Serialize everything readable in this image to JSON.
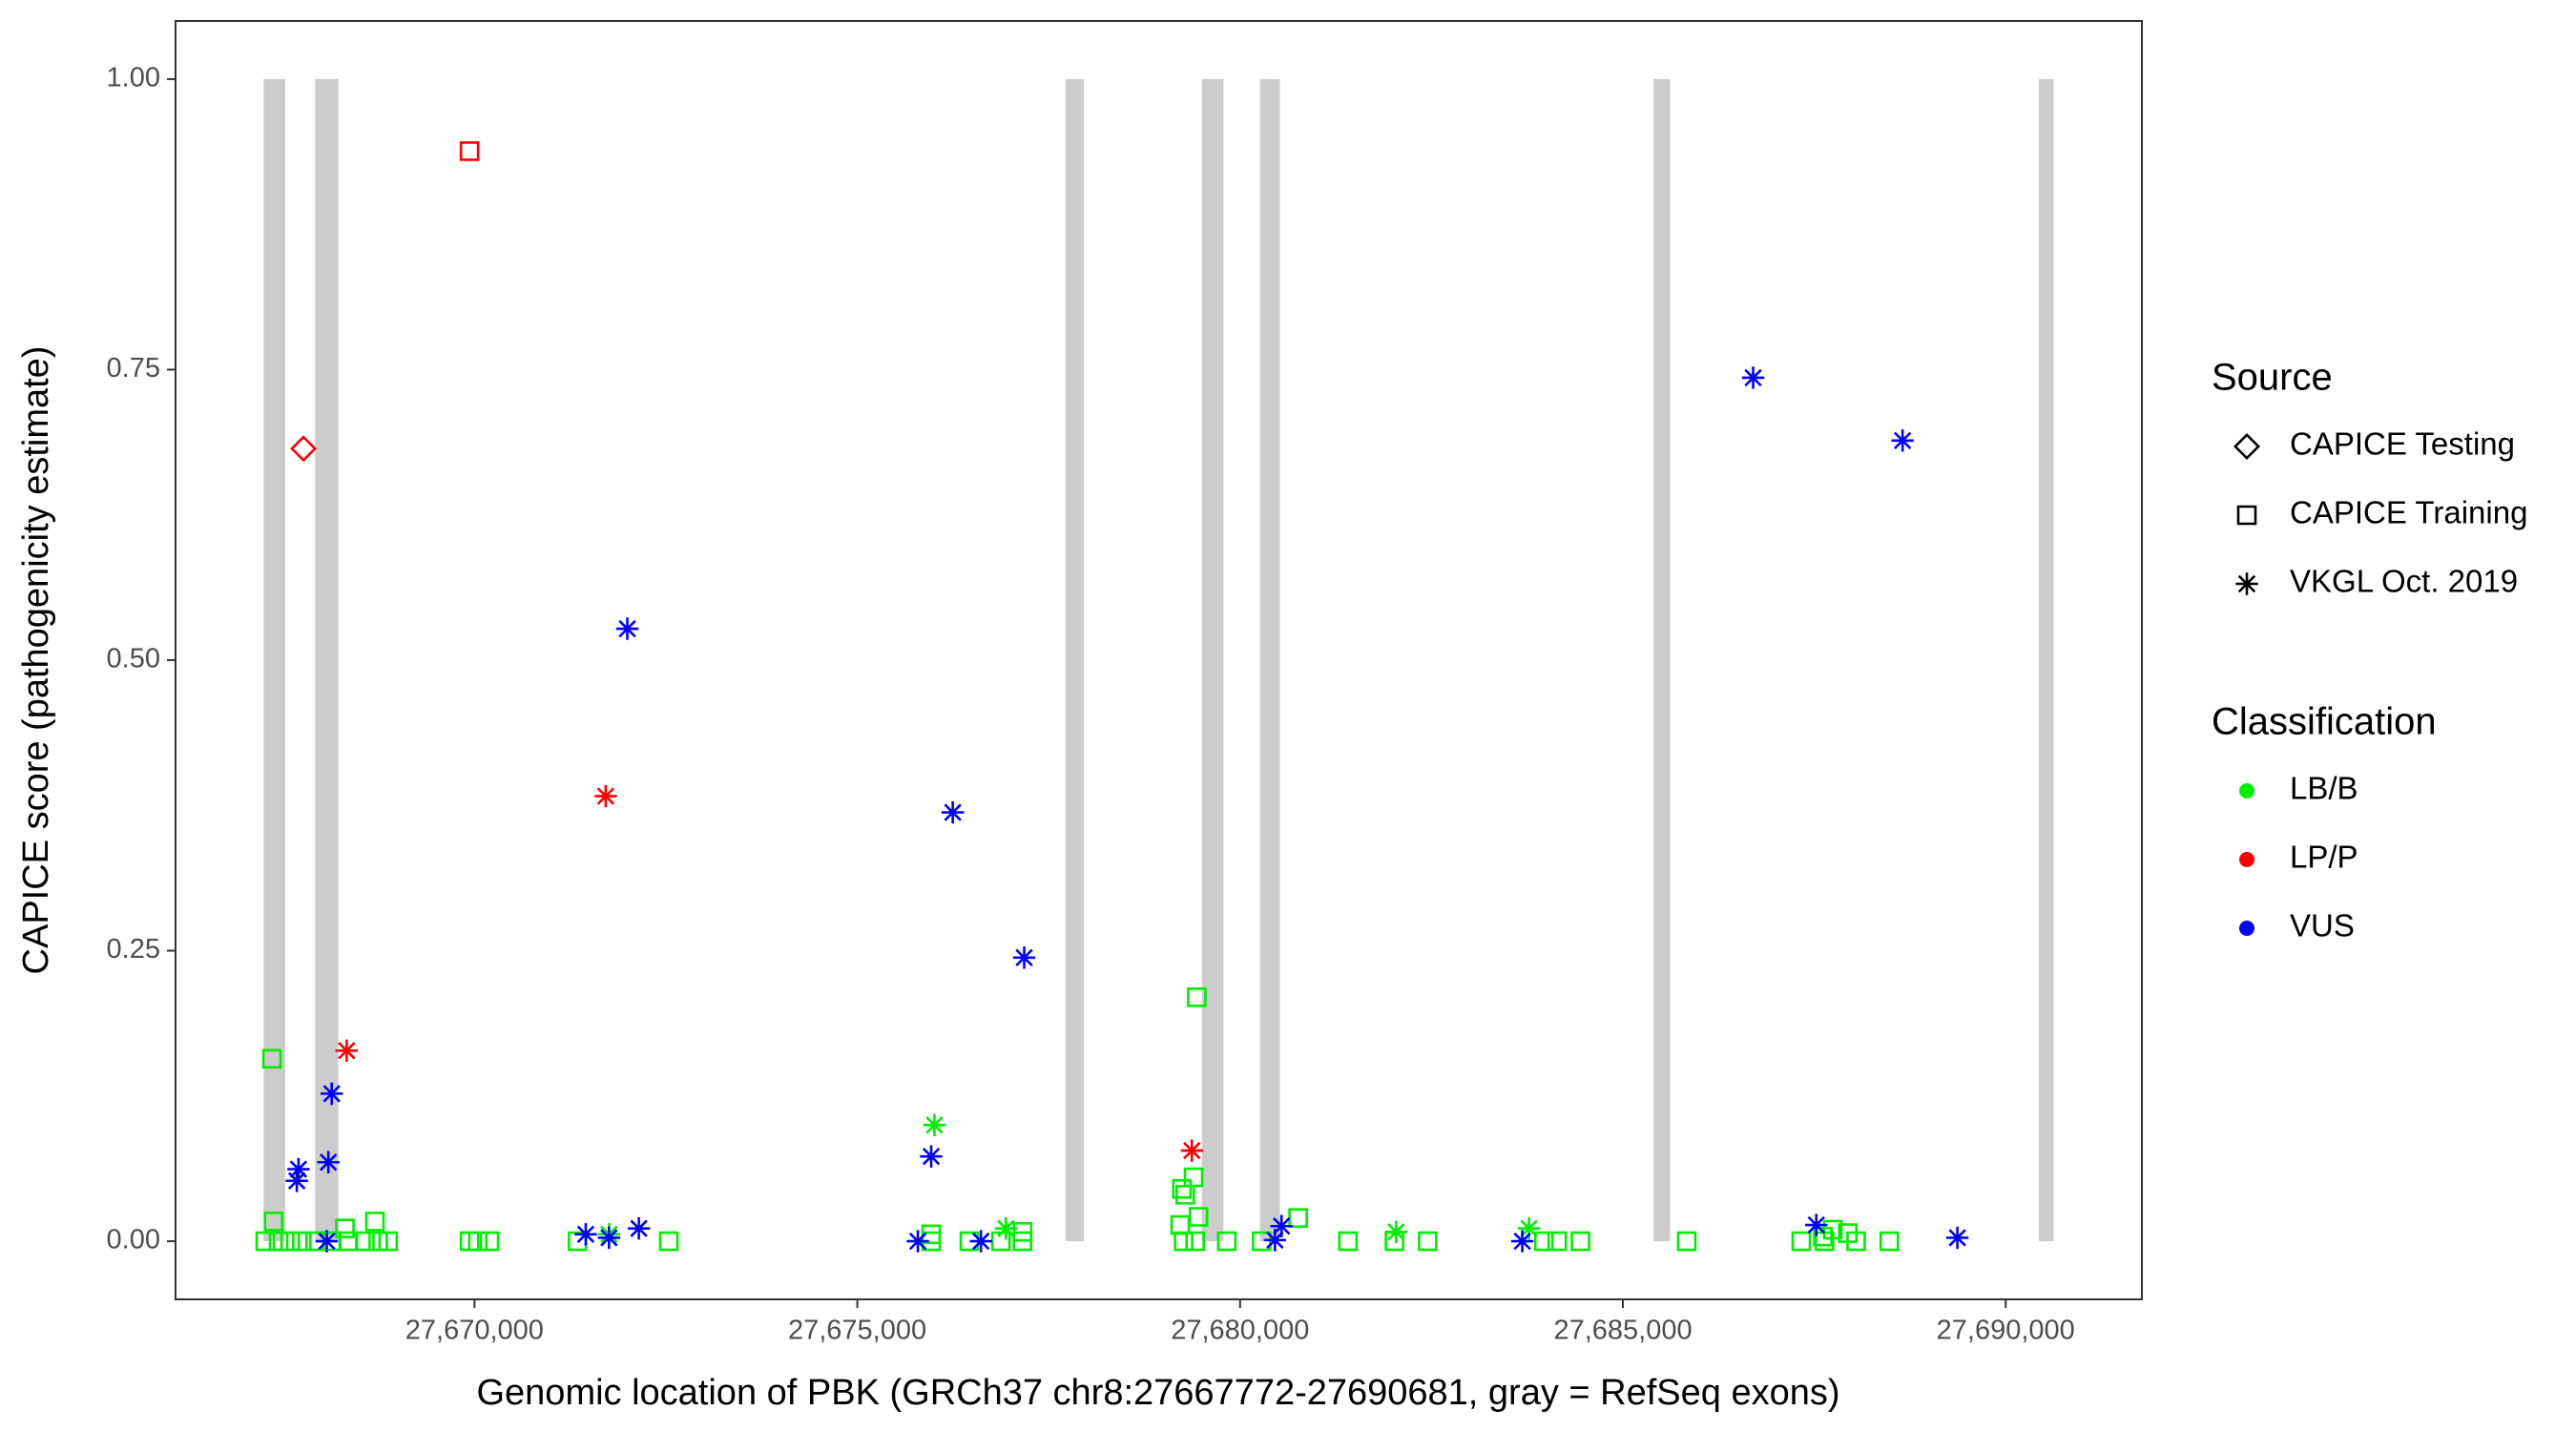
{
  "chart_data": {
    "type": "scatter",
    "x_label": "Genomic location of PBK (GRCh37 chr8:27667772-27690681, gray = RefSeq exons)",
    "y_label": "CAPICE score (pathogenicity estimate)",
    "xlim": [
      27666095,
      27691779
    ],
    "ylim": [
      -0.05,
      1.05
    ],
    "xticks": [
      {
        "value": 27670000,
        "label": "27,670,000"
      },
      {
        "value": 27675000,
        "label": "27,675,000"
      },
      {
        "value": 27680000,
        "label": "27,680,000"
      },
      {
        "value": 27685000,
        "label": "27,685,000"
      },
      {
        "value": 27690000,
        "label": "27,690,000"
      }
    ],
    "yticks": [
      {
        "value": 0,
        "label": "0.00"
      },
      {
        "value": 0.25,
        "label": "0.25"
      },
      {
        "value": 0.5,
        "label": "0.50"
      },
      {
        "value": 0.75,
        "label": "0.75"
      },
      {
        "value": 1,
        "label": "1.00"
      }
    ],
    "grid": false,
    "exons": {
      "color": "#cccccc",
      "ymin": 0,
      "ymax": 1,
      "x": [
        [
          27667245,
          27667527
        ],
        [
          27667918,
          27668221
        ],
        [
          27677722,
          27677960
        ],
        [
          27679500,
          27679782
        ],
        [
          27680259,
          27680520
        ],
        [
          27685400,
          27685617
        ],
        [
          27690432,
          27690627
        ]
      ]
    },
    "legend": {
      "position": "right",
      "groups": [
        {
          "title": "Source",
          "items": [
            {
              "name": "CAPICE Testing",
              "shape": "diamond"
            },
            {
              "name": "CAPICE Training",
              "shape": "square"
            },
            {
              "name": "VKGL Oct. 2019",
              "shape": "asterisk"
            }
          ]
        },
        {
          "title": "Classification",
          "items": [
            {
              "name": "LB/B",
              "color": "#00ee00"
            },
            {
              "name": "LP/P",
              "color": "#ff0000"
            },
            {
              "name": "VUS",
              "color": "#0000ff"
            }
          ]
        }
      ]
    },
    "series": [
      {
        "source": "CAPICE Training",
        "classification": "LB/B",
        "x": [
          27667267,
          27667441,
          27667592,
          27667744,
          27667918,
          27668135,
          27668352,
          27668568,
          27668742,
          27668872,
          27668699,
          27668308,
          27667354,
          27667376,
          27669935,
          27670043,
          27670195,
          27671345,
          27672538,
          27675965,
          27676464,
          27676876,
          27677158,
          27677158,
          27675965,
          27679262,
          27679413,
          27679826,
          27679435,
          27679240,
          27679283,
          27679392,
          27679457,
          27679218,
          27680281,
          27680758,
          27681409,
          27682016,
          27682450,
          27683968,
          27684142,
          27684446,
          27685834,
          27687330,
          27687634,
          27688046,
          27688480,
          27687742,
          27687938,
          27687612
        ],
        "y": [
          0,
          0,
          0,
          0,
          0,
          0,
          0,
          0,
          0,
          0,
          0.017,
          0.011,
          0.157,
          0.017,
          0,
          0,
          0,
          0,
          0,
          0.006,
          0,
          0,
          0,
          0.008,
          0,
          0,
          0,
          0,
          0.21,
          0.045,
          0.04,
          0.055,
          0.021,
          0.014,
          0,
          0.02,
          0,
          0,
          0,
          0,
          0,
          0,
          0,
          0,
          0,
          0,
          0,
          0.01,
          0.007,
          0.004
        ]
      },
      {
        "source": "VKGL Oct. 2019",
        "classification": "LB/B",
        "x": [
          27676008,
          27676941,
          27682038,
          27683773,
          27671757
        ],
        "y": [
          0.1,
          0.011,
          0.008,
          0.011,
          0.006
        ]
      },
      {
        "source": "VKGL Oct. 2019",
        "classification": "VUS",
        "x": [
          27667701,
          27667679,
          27668091,
          27668135,
          27668070,
          27671453,
          27671757,
          27672147,
          27671996,
          27676247,
          27677180,
          27675965,
          27675791,
          27676615,
          27680455,
          27680541,
          27683686,
          27686701,
          27688653,
          27687526,
          27689369
        ],
        "y": [
          0.062,
          0.052,
          0.068,
          0.127,
          0,
          0.006,
          0.003,
          0.011,
          0.527,
          0.369,
          0.244,
          0.073,
          0,
          0,
          0.001,
          0.013,
          0,
          0.743,
          0.689,
          0.014,
          0.003
        ]
      },
      {
        "source": "VKGL Oct. 2019",
        "classification": "LP/P",
        "x": [
          27668330,
          27671714,
          27679370
        ],
        "y": [
          0.164,
          0.383,
          0.078
        ]
      },
      {
        "source": "CAPICE Training",
        "classification": "LP/P",
        "x": [
          27669935
        ],
        "y": [
          0.938
        ]
      },
      {
        "source": "CAPICE Testing",
        "classification": "LP/P",
        "x": [
          27667766
        ],
        "y": [
          0.682
        ]
      }
    ]
  }
}
